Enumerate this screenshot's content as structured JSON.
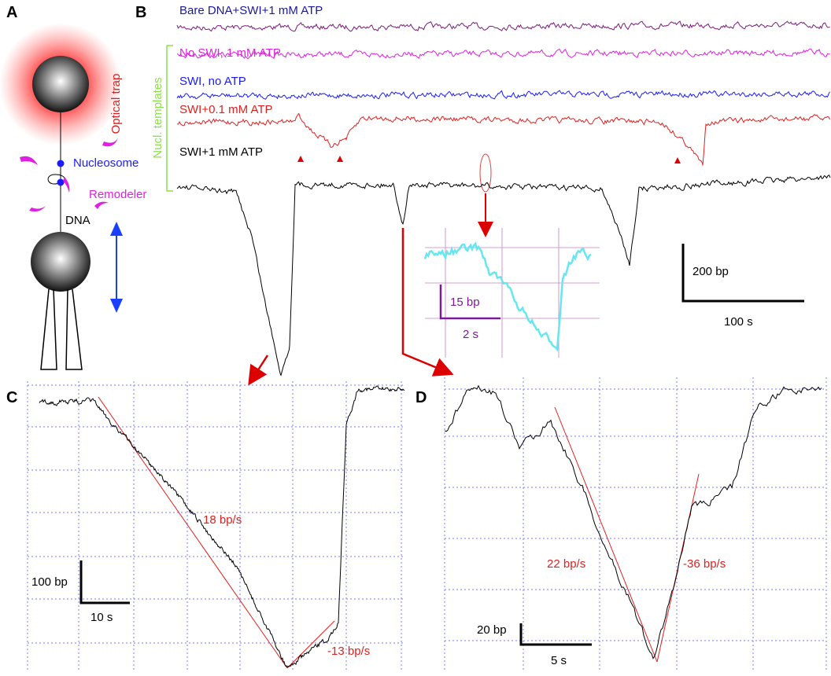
{
  "panels": {
    "a": {
      "label": "A",
      "optical_trap": "Optical trap",
      "nucleosome": "Nucleosome",
      "remodeler": "Remodeler",
      "dna": "DNA"
    },
    "b": {
      "label": "B",
      "traces": [
        "Bare DNA+SWI+1 mM ATP",
        "No SWI, 1 mM ATP",
        "SWI, no ATP",
        "SWI+0.1 mM ATP",
        "SWI+1 mM ATP"
      ],
      "group_label": "Nucl. templates",
      "scale_y": "200 bp",
      "scale_x": "100 s",
      "inset_scale_y": "15 bp",
      "inset_scale_x": "2 s"
    },
    "c": {
      "label": "C",
      "rate_down": "18 bp/s",
      "rate_up": "-13 bp/s",
      "scale_y": "100 bp",
      "scale_x": "10 s"
    },
    "d": {
      "label": "D",
      "rate_down": "22 bp/s",
      "rate_up": "-36 bp/s",
      "scale_y": "20 bp",
      "scale_x": "5 s"
    }
  }
}
